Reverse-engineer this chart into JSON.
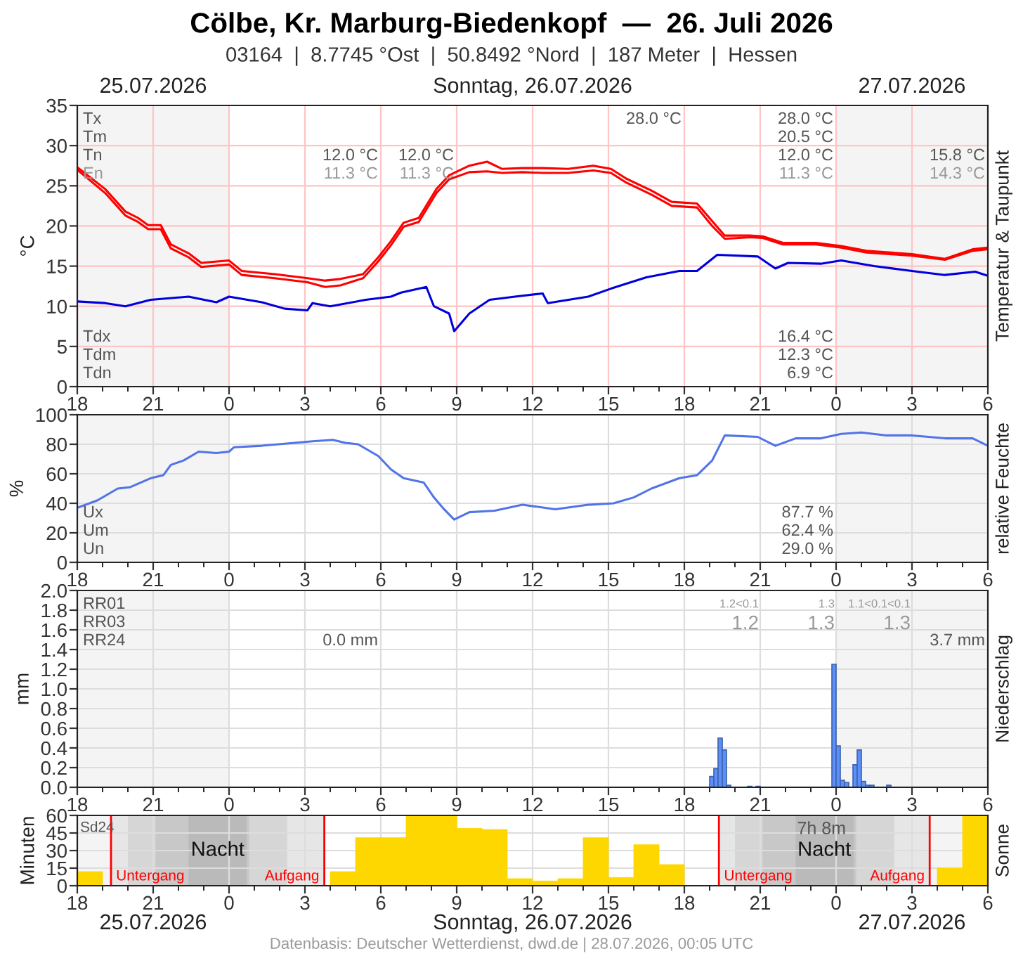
{
  "chart_data": [
    {
      "type": "line",
      "title": "Cölbe, Kr. Marburg-Biedenkopf  —  26. Juli 2026",
      "subtitle": "03164  |  8.7745 °Ost  |  50.8492 °Nord  |  187 Meter  |  Hessen",
      "ylabel": "°C",
      "y2label": "Temperatur & Taupunkt",
      "x": [
        "2026-07-25T18:00",
        "2026-07-25T19:06",
        "2026-07-25T19:54",
        "2026-07-25T20:24",
        "2026-07-25T20:48",
        "2026-07-25T21:18",
        "2026-07-25T21:42",
        "2026-07-25T22:24",
        "2026-07-25T22:54",
        "2026-07-26T00:00",
        "2026-07-26T00:30",
        "2026-07-26T01:48",
        "2026-07-26T03:06",
        "2026-07-26T03:48",
        "2026-07-26T04:24",
        "2026-07-26T05:18",
        "2026-07-26T05:54",
        "2026-07-26T06:24",
        "2026-07-26T06:54",
        "2026-07-26T07:30",
        "2026-07-26T08:12",
        "2026-07-26T08:42",
        "2026-07-26T09:30",
        "2026-07-26T10:12",
        "2026-07-26T10:48",
        "2026-07-26T11:36",
        "2026-07-26T12:24",
        "2026-07-26T13:24",
        "2026-07-26T14:24",
        "2026-07-26T15:06",
        "2026-07-26T15:42",
        "2026-07-26T16:42",
        "2026-07-26T17:30",
        "2026-07-26T18:30",
        "2026-07-26T19:06",
        "2026-07-26T19:36",
        "2026-07-26T20:36",
        "2026-07-26T21:06",
        "2026-07-26T21:54",
        "2026-07-26T23:12",
        "2026-07-27T00:12",
        "2026-07-27T01:12",
        "2026-07-27T03:00",
        "2026-07-27T04:18",
        "2026-07-27T05:24",
        "2026-07-27T06:00"
      ],
      "series": [
        {
          "color": "#ff0000",
          "values": [
            27.3,
            24.6,
            21.8,
            21.0,
            20.1,
            20.1,
            17.7,
            16.6,
            15.4,
            15.7,
            14.4,
            14.0,
            13.5,
            13.2,
            13.4,
            14.0,
            16.1,
            18.1,
            20.4,
            21.0,
            24.6,
            26.3,
            27.5,
            28.0,
            27.1,
            27.2,
            27.2,
            27.1,
            27.5,
            27.1,
            25.9,
            24.4,
            23.0,
            22.8,
            20.6,
            18.8,
            18.8,
            18.7,
            17.9,
            17.9,
            17.5,
            16.9,
            16.5,
            15.9,
            17.1,
            17.3
          ]
        },
        {
          "color": "#ff0000",
          "values": [
            27.0,
            24.1,
            21.3,
            20.5,
            19.6,
            19.6,
            17.2,
            16.1,
            14.9,
            15.2,
            13.9,
            13.5,
            13.0,
            12.4,
            12.6,
            13.5,
            15.6,
            17.6,
            19.9,
            20.5,
            24.1,
            25.8,
            26.7,
            26.8,
            26.6,
            26.7,
            26.6,
            26.6,
            26.9,
            26.6,
            25.4,
            23.9,
            22.5,
            22.3,
            20.0,
            18.4,
            18.6,
            18.5,
            17.7,
            17.7,
            17.3,
            16.7,
            16.3,
            15.8,
            16.9,
            17.1
          ]
        },
        {
          "color": "#0000dd",
          "x": [
            "2026-07-25T18:00",
            "2026-07-25T19:06",
            "2026-07-25T19:54",
            "2026-07-25T20:54",
            "2026-07-25T22:24",
            "2026-07-25T23:30",
            "2026-07-26T00:00",
            "2026-07-26T01:18",
            "2026-07-26T02:12",
            "2026-07-26T03:06",
            "2026-07-26T03:18",
            "2026-07-26T04:00",
            "2026-07-26T05:24",
            "2026-07-26T06:24",
            "2026-07-26T06:48",
            "2026-07-26T07:48",
            "2026-07-26T08:06",
            "2026-07-26T08:42",
            "2026-07-26T08:54",
            "2026-07-26T09:30",
            "2026-07-26T10:18",
            "2026-07-26T11:18",
            "2026-07-26T12:24",
            "2026-07-26T12:36",
            "2026-07-26T14:12",
            "2026-07-26T15:06",
            "2026-07-26T16:30",
            "2026-07-26T17:48",
            "2026-07-26T18:30",
            "2026-07-26T19:18",
            "2026-07-26T20:54",
            "2026-07-26T21:36",
            "2026-07-26T22:06",
            "2026-07-26T23:24",
            "2026-07-27T00:12",
            "2026-07-27T01:30",
            "2026-07-27T03:00",
            "2026-07-27T04:18",
            "2026-07-27T05:30",
            "2026-07-27T06:00"
          ],
          "values": [
            10.6,
            10.4,
            10.0,
            10.8,
            11.2,
            10.5,
            11.2,
            10.5,
            9.7,
            9.5,
            10.4,
            10.0,
            10.8,
            11.2,
            11.7,
            12.4,
            10.0,
            9.1,
            6.9,
            9.1,
            10.8,
            11.2,
            11.6,
            10.4,
            11.2,
            12.2,
            13.6,
            14.4,
            14.4,
            16.4,
            16.2,
            14.7,
            15.4,
            15.3,
            15.7,
            15.0,
            14.4,
            13.9,
            14.3,
            13.8
          ]
        }
      ],
      "xlim": [
        "2026-07-25T18:00",
        "2026-07-27T06:00"
      ],
      "xticks": [
        {
          "value": "2026-07-25T18:00",
          "label": "18"
        },
        {
          "value": "2026-07-25T21:00",
          "label": "21"
        },
        {
          "value": "2026-07-26T00:00",
          "label": "0"
        },
        {
          "value": "2026-07-26T03:00",
          "label": "3"
        },
        {
          "value": "2026-07-26T06:00",
          "label": "6"
        },
        {
          "value": "2026-07-26T09:00",
          "label": "9"
        },
        {
          "value": "2026-07-26T12:00",
          "label": "12"
        },
        {
          "value": "2026-07-26T15:00",
          "label": "15"
        },
        {
          "value": "2026-07-26T18:00",
          "label": "18"
        },
        {
          "value": "2026-07-26T21:00",
          "label": "21"
        },
        {
          "value": "2026-07-27T00:00",
          "label": "0"
        },
        {
          "value": "2026-07-27T03:00",
          "label": "3"
        },
        {
          "value": "2026-07-27T06:00",
          "label": "6"
        }
      ],
      "ylim": [
        0,
        35
      ],
      "yticks": [
        0,
        5,
        10,
        15,
        20,
        25,
        30,
        35
      ],
      "grid": true,
      "legend": false,
      "bands": [
        {
          "axis": "x",
          "from": "2026-07-25T18:00",
          "to": "2026-07-26T00:00",
          "color": "#f4f4f4"
        },
        {
          "axis": "x",
          "from": "2026-07-27T00:00",
          "to": "2026-07-27T06:00",
          "color": "#f4f4f4"
        }
      ],
      "annotations": [
        "25.07.2026",
        "Sonntag, 26.07.2026",
        "27.07.2026",
        "Tx",
        "Tm",
        "Tn",
        "En",
        "12.0 °C",
        "11.3 °C",
        "12.0 °C",
        "11.3 °C",
        "28.0 °C",
        "28.0 °C",
        "20.5 °C",
        "12.0 °C",
        "11.3 °C",
        "15.8 °C",
        "14.3 °C",
        "Tdx",
        "Tdm",
        "Tdn",
        "16.4 °C",
        "12.3 °C",
        "6.9 °C"
      ]
    },
    {
      "type": "line",
      "ylabel": "%",
      "y2label": "relative Feuchte",
      "series": [
        {
          "color": "#5274e8",
          "x": [
            "2026-07-25T18:00",
            "2026-07-25T18:48",
            "2026-07-25T19:36",
            "2026-07-25T20:06",
            "2026-07-25T20:54",
            "2026-07-25T21:24",
            "2026-07-25T21:42",
            "2026-07-25T22:12",
            "2026-07-25T22:48",
            "2026-07-25T23:30",
            "2026-07-26T00:00",
            "2026-07-26T00:12",
            "2026-07-26T01:18",
            "2026-07-26T02:36",
            "2026-07-26T03:18",
            "2026-07-26T04:06",
            "2026-07-26T04:36",
            "2026-07-26T05:06",
            "2026-07-26T05:54",
            "2026-07-26T06:24",
            "2026-07-26T06:54",
            "2026-07-26T07:42",
            "2026-07-26T08:06",
            "2026-07-26T08:30",
            "2026-07-26T08:54",
            "2026-07-26T09:30",
            "2026-07-26T10:30",
            "2026-07-26T11:36",
            "2026-07-26T12:54",
            "2026-07-26T14:12",
            "2026-07-26T15:12",
            "2026-07-26T16:00",
            "2026-07-26T16:42",
            "2026-07-26T17:48",
            "2026-07-26T18:30",
            "2026-07-26T19:06",
            "2026-07-26T19:36",
            "2026-07-26T20:54",
            "2026-07-26T21:36",
            "2026-07-26T22:24",
            "2026-07-26T23:24",
            "2026-07-27T00:12",
            "2026-07-27T01:00",
            "2026-07-27T02:00",
            "2026-07-27T03:00",
            "2026-07-27T04:18",
            "2026-07-27T05:24",
            "2026-07-27T06:00"
          ],
          "values": [
            37,
            42,
            50,
            51,
            57,
            59,
            66,
            69,
            75,
            74,
            75,
            78,
            79,
            81,
            82,
            83,
            81,
            80,
            72,
            63,
            57,
            54,
            44,
            36,
            29,
            34,
            35,
            39,
            36,
            39,
            40,
            44,
            50,
            57,
            59,
            69,
            86,
            85,
            79,
            84,
            84,
            87,
            88,
            86,
            86,
            84,
            84,
            79
          ]
        }
      ],
      "xlim": [
        "2026-07-25T18:00",
        "2026-07-27T06:00"
      ],
      "xticks": [
        {
          "value": "2026-07-25T18:00",
          "label": "18"
        },
        {
          "value": "2026-07-25T21:00",
          "label": "21"
        },
        {
          "value": "2026-07-26T00:00",
          "label": "0"
        },
        {
          "value": "2026-07-26T03:00",
          "label": "3"
        },
        {
          "value": "2026-07-26T06:00",
          "label": "6"
        },
        {
          "value": "2026-07-26T09:00",
          "label": "9"
        },
        {
          "value": "2026-07-26T12:00",
          "label": "12"
        },
        {
          "value": "2026-07-26T15:00",
          "label": "15"
        },
        {
          "value": "2026-07-26T18:00",
          "label": "18"
        },
        {
          "value": "2026-07-26T21:00",
          "label": "21"
        },
        {
          "value": "2026-07-27T00:00",
          "label": "0"
        },
        {
          "value": "2026-07-27T03:00",
          "label": "3"
        },
        {
          "value": "2026-07-27T06:00",
          "label": "6"
        }
      ],
      "ylim": [
        0,
        100
      ],
      "yticks": [
        0,
        20,
        40,
        60,
        80,
        100
      ],
      "grid": true,
      "legend": false,
      "bands": [
        {
          "axis": "x",
          "from": "2026-07-25T18:00",
          "to": "2026-07-26T00:00",
          "color": "#f4f4f4"
        },
        {
          "axis": "x",
          "from": "2026-07-27T00:00",
          "to": "2026-07-27T06:00",
          "color": "#f4f4f4"
        }
      ],
      "annotations": [
        "Ux",
        "Um",
        "Un",
        "87.7 %",
        "62.4 %",
        "29.0 %"
      ]
    },
    {
      "type": "bar",
      "ylabel": "mm",
      "y2label": "Niederschlag",
      "series": [
        {
          "color": "#5b8ff9",
          "x": [
            "2026-07-26T19:05",
            "2026-07-26T19:15",
            "2026-07-26T19:25",
            "2026-07-26T19:35",
            "2026-07-26T19:45",
            "2026-07-26T20:35",
            "2026-07-26T20:55",
            "2026-07-26T23:55",
            "2026-07-27T00:05",
            "2026-07-27T00:15",
            "2026-07-27T00:25",
            "2026-07-27T00:45",
            "2026-07-27T00:55",
            "2026-07-27T01:05",
            "2026-07-27T01:15",
            "2026-07-27T01:25",
            "2026-07-27T02:05"
          ],
          "values": [
            0.11,
            0.19,
            0.5,
            0.38,
            0.02,
            0.01,
            0.01,
            1.25,
            0.42,
            0.07,
            0.05,
            0.23,
            0.38,
            0.06,
            0.02,
            0.02,
            0.02
          ]
        }
      ],
      "xlim": [
        "2026-07-25T18:00",
        "2026-07-27T06:00"
      ],
      "xticks": [
        {
          "value": "2026-07-25T18:00",
          "label": "18"
        },
        {
          "value": "2026-07-25T21:00",
          "label": "21"
        },
        {
          "value": "2026-07-26T00:00",
          "label": "0"
        },
        {
          "value": "2026-07-26T03:00",
          "label": "3"
        },
        {
          "value": "2026-07-26T06:00",
          "label": "6"
        },
        {
          "value": "2026-07-26T09:00",
          "label": "9"
        },
        {
          "value": "2026-07-26T12:00",
          "label": "12"
        },
        {
          "value": "2026-07-26T15:00",
          "label": "15"
        },
        {
          "value": "2026-07-26T18:00",
          "label": "18"
        },
        {
          "value": "2026-07-26T21:00",
          "label": "21"
        },
        {
          "value": "2026-07-27T00:00",
          "label": "0"
        },
        {
          "value": "2026-07-27T03:00",
          "label": "3"
        },
        {
          "value": "2026-07-27T06:00",
          "label": "6"
        }
      ],
      "ylim": [
        0,
        2.0
      ],
      "yticks": [
        {
          "value": 0,
          "label": "0.0"
        },
        0.2,
        0.4,
        0.6,
        0.8,
        {
          "value": 1,
          "label": "1.0"
        },
        1.2,
        1.4,
        1.6,
        1.8,
        {
          "value": 2,
          "label": "2.0"
        }
      ],
      "grid": true,
      "legend": false,
      "bands": [
        {
          "axis": "x",
          "from": "2026-07-25T18:00",
          "to": "2026-07-26T00:00",
          "color": "#f4f4f4"
        },
        {
          "axis": "x",
          "from": "2026-07-27T00:00",
          "to": "2026-07-27T06:00",
          "color": "#f4f4f4"
        }
      ],
      "annotations": [
        "RR01",
        "RR03",
        "RR24",
        "1.2<0.1",
        "1.3",
        "1.1<0.1<0.1",
        "1.2",
        "1.3",
        "1.3",
        "0.0 mm",
        "3.7 mm"
      ]
    },
    {
      "type": "histogram",
      "ylabel": "Minuten",
      "y2label": "Sonne",
      "color": "#ffd700",
      "bins": [
        "2026-07-25T18:00",
        "2026-07-25T19:00",
        "2026-07-25T20:00",
        "2026-07-25T21:00",
        "2026-07-25T22:00",
        "2026-07-25T23:00",
        "2026-07-26T00:00",
        "2026-07-26T01:00",
        "2026-07-26T02:00",
        "2026-07-26T03:00",
        "2026-07-26T04:00",
        "2026-07-26T05:00",
        "2026-07-26T06:00",
        "2026-07-26T07:00",
        "2026-07-26T08:00",
        "2026-07-26T09:00",
        "2026-07-26T10:00",
        "2026-07-26T11:00",
        "2026-07-26T12:00",
        "2026-07-26T13:00",
        "2026-07-26T14:00",
        "2026-07-26T15:00",
        "2026-07-26T16:00",
        "2026-07-26T17:00",
        "2026-07-26T18:00",
        "2026-07-26T19:00",
        "2026-07-26T20:00",
        "2026-07-26T21:00",
        "2026-07-26T22:00",
        "2026-07-26T23:00",
        "2026-07-27T00:00",
        "2026-07-27T01:00",
        "2026-07-27T02:00",
        "2026-07-27T03:00",
        "2026-07-27T04:00",
        "2026-07-27T05:00",
        "2026-07-27T06:00"
      ],
      "values": [
        12,
        0,
        0,
        0,
        0,
        0,
        0,
        0,
        0,
        0,
        12,
        41,
        41,
        60,
        60,
        49,
        48,
        6,
        4,
        6,
        41,
        7,
        35,
        18,
        0,
        0,
        0,
        0,
        0,
        0,
        0,
        0,
        0,
        0,
        15,
        60
      ],
      "xlim": [
        "2026-07-25T18:00",
        "2026-07-27T06:00"
      ],
      "xticks": [
        {
          "value": "2026-07-25T18:00",
          "label": "18"
        },
        {
          "value": "2026-07-25T21:00",
          "label": "21"
        },
        {
          "value": "2026-07-26T00:00",
          "label": "0"
        },
        {
          "value": "2026-07-26T03:00",
          "label": "3"
        },
        {
          "value": "2026-07-26T06:00",
          "label": "6"
        },
        {
          "value": "2026-07-26T09:00",
          "label": "9"
        },
        {
          "value": "2026-07-26T12:00",
          "label": "12"
        },
        {
          "value": "2026-07-26T15:00",
          "label": "15"
        },
        {
          "value": "2026-07-26T18:00",
          "label": "18"
        },
        {
          "value": "2026-07-26T21:00",
          "label": "21"
        },
        {
          "value": "2026-07-27T00:00",
          "label": "0"
        },
        {
          "value": "2026-07-27T03:00",
          "label": "3"
        },
        {
          "value": "2026-07-27T06:00",
          "label": "6"
        }
      ],
      "ylim": [
        0,
        60
      ],
      "yticks": [
        0,
        15,
        30,
        45,
        60
      ],
      "grid": true,
      "legend": false,
      "bands": [
        {
          "axis": "x",
          "from": "2026-07-25T18:00",
          "to": "2026-07-26T00:00",
          "color": "#f4f4f4"
        },
        {
          "axis": "x",
          "from": "2026-07-27T00:00",
          "to": "2026-07-27T06:00",
          "color": "#f4f4f4"
        },
        {
          "axis": "x",
          "from": "2026-07-25T19:20",
          "to": "2026-07-26T03:46",
          "color": "#e6e6e6",
          "label": "Nacht"
        },
        {
          "axis": "x",
          "from": "2026-07-25T20:00",
          "to": "2026-07-26T02:18",
          "color": "#d6d6d6"
        },
        {
          "axis": "x",
          "from": "2026-07-25T21:06",
          "to": "2026-07-26T00:48",
          "color": "#c8c8c8"
        },
        {
          "axis": "x",
          "from": "2026-07-25T22:24",
          "to": "2026-07-26T00:42",
          "color": "#bababa"
        },
        {
          "axis": "x",
          "from": "2026-07-26T19:22",
          "to": "2026-07-27T03:42",
          "color": "#e6e6e6",
          "label": "Nacht"
        },
        {
          "axis": "x",
          "from": "2026-07-26T20:00",
          "to": "2026-07-27T02:18",
          "color": "#d6d6d6"
        },
        {
          "axis": "x",
          "from": "2026-07-26T21:06",
          "to": "2026-07-27T00:48",
          "color": "#c8c8c8"
        },
        {
          "axis": "x",
          "from": "2026-07-26T22:24",
          "to": "2026-07-27T00:42",
          "color": "#bababa"
        }
      ],
      "ref_lines": [
        {
          "axis": "x",
          "value": "2026-07-25T19:20",
          "label": "Untergang",
          "color": "#ff0000"
        },
        {
          "axis": "x",
          "value": "2026-07-26T03:46",
          "label": "Aufgang",
          "color": "#ff0000"
        },
        {
          "axis": "x",
          "value": "2026-07-26T19:22",
          "label": "Untergang",
          "color": "#ff0000"
        },
        {
          "axis": "x",
          "value": "2026-07-27T03:42",
          "label": "Aufgang",
          "color": "#ff0000"
        }
      ],
      "annotations": [
        "Sd24",
        "7h 8m",
        "25.07.2026",
        "Sonntag, 26.07.2026",
        "27.07.2026",
        "Datenbasis: Deutscher Wetterdienst, dwd.de | 28.07.2026, 00:05 UTC"
      ]
    }
  ]
}
